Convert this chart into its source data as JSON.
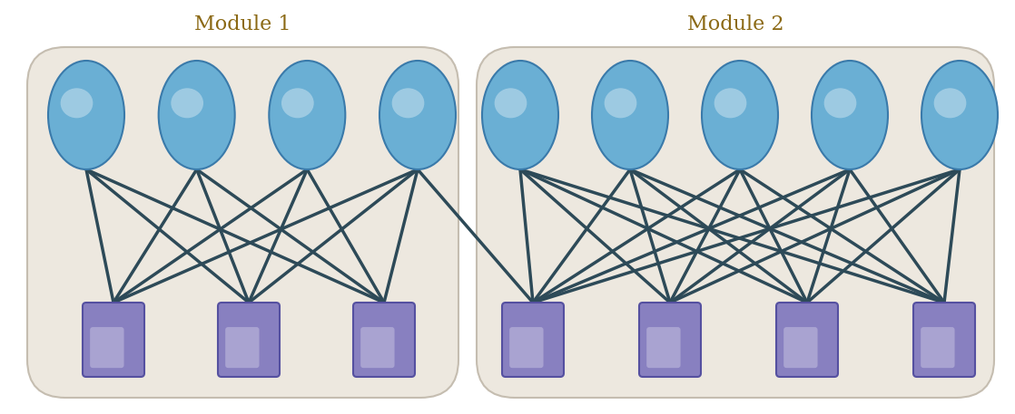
{
  "background_color": "#ffffff",
  "box_facecolor": "#ede8df",
  "box_edgecolor": "#c5bdb0",
  "circle_facecolor": "#6aafd4",
  "circle_edgecolor": "#3a7aaa",
  "square_facecolor": "#8880c0",
  "square_edgecolor": "#5550a0",
  "line_color": "#2d4a58",
  "line_width": 2.5,
  "title_color": "#8b6914",
  "title_fontsize": 16,
  "module1_title": "Module 1",
  "module2_title": "Module 2",
  "module1_genes": 4,
  "module1_traits": 3,
  "module2_genes": 5,
  "module2_traits": 4,
  "figsize": [
    11.18,
    4.57
  ],
  "dpi": 100
}
